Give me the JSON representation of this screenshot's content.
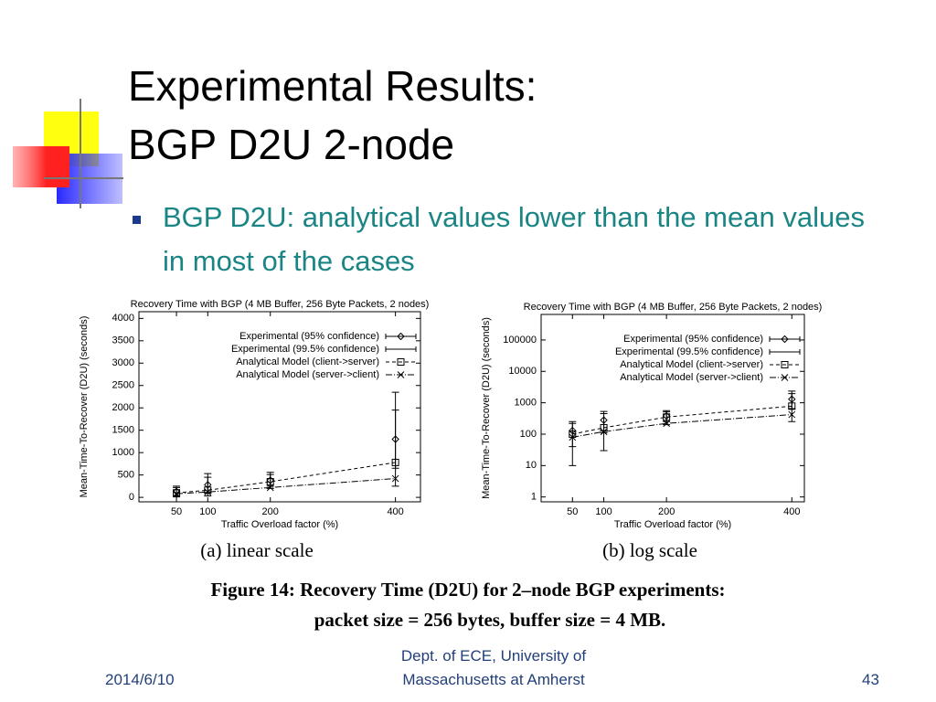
{
  "slide": {
    "title": [
      "Experimental Results:",
      "BGP D2U 2-node"
    ],
    "bullet": "BGP D2U: analytical values lower than the mean values in most of the cases",
    "figure_caption": [
      "Figure 14:  Recovery Time (D2U) for 2–node BGP experiments:",
      "packet size = 256 bytes, buffer size = 4 MB."
    ],
    "footer": {
      "date": "2014/6/10",
      "organization": [
        "Dept. of ECE, University of",
        "Massachusetts at Amherst"
      ],
      "page": "43"
    }
  },
  "chart_data": [
    {
      "type": "line",
      "title": "Recovery Time with BGP (4 MB Buffer, 256 Byte Packets, 2 nodes)",
      "caption": "(a) linear scale",
      "x_label": "Traffic Overload factor (%)",
      "y_label": "Mean-Time-To-Recover (D2U) (seconds)",
      "x": [
        50,
        100,
        200,
        400
      ],
      "xlim": [
        -10,
        440
      ],
      "xticks": [
        50,
        100,
        200,
        400
      ],
      "ylim": [
        -100,
        4150
      ],
      "yticks": [
        0,
        500,
        1000,
        1500,
        2000,
        2500,
        3000,
        3500,
        4000
      ],
      "log_scale": false,
      "legend": "top-right",
      "series": [
        {
          "name": "Experimental (95% confidence)",
          "color": "#000000",
          "mode": "errorbars",
          "marker": "diamond",
          "values": [
            130,
            280,
            380,
            1300
          ],
          "errors": [
            90,
            170,
            130,
            650
          ]
        },
        {
          "name": "Experimental (99.5% confidence)",
          "color": "#000000",
          "mode": "errorbars",
          "marker": "none",
          "values": [
            130,
            280,
            380,
            1300
          ],
          "errors": [
            120,
            250,
            180,
            1050
          ]
        },
        {
          "name": "Analytical Model (client->server)",
          "color": "#000000",
          "mode": "lines",
          "marker": "square",
          "dash": "4 3",
          "values": [
            100,
            160,
            350,
            780
          ]
        },
        {
          "name": "Analytical Model (server->client)",
          "color": "#000000",
          "mode": "lines",
          "marker": "x",
          "dash": "7 2 1 2",
          "values": [
            80,
            120,
            220,
            420
          ]
        }
      ]
    },
    {
      "type": "line",
      "title": "Recovery Time with BGP (4 MB Buffer, 256 Byte Packets, 2 nodes)",
      "caption": "(b) log scale",
      "x_label": "Traffic Overload factor (%)",
      "y_label": "Mean-Time-To-Recover (D2U) (seconds)",
      "x": [
        50,
        100,
        200,
        400
      ],
      "xlim": [
        0,
        420
      ],
      "xticks": [
        50,
        100,
        200,
        400
      ],
      "ylim": [
        0.7,
        650000
      ],
      "yticks": [
        1,
        10,
        100,
        1000,
        10000,
        100000
      ],
      "log_scale": true,
      "legend": "top-right",
      "series": [
        {
          "name": "Experimental (95% confidence)",
          "color": "#000000",
          "mode": "errorbars",
          "marker": "diamond",
          "values": [
            130,
            280,
            380,
            1300
          ],
          "errors": [
            90,
            170,
            130,
            650
          ]
        },
        {
          "name": "Experimental (99.5% confidence)",
          "color": "#000000",
          "mode": "errorbars",
          "marker": "none",
          "values": [
            130,
            280,
            380,
            1300
          ],
          "errors": [
            120,
            250,
            180,
            1050
          ]
        },
        {
          "name": "Analytical Model (client->server)",
          "color": "#000000",
          "mode": "lines",
          "marker": "square",
          "dash": "4 3",
          "values": [
            100,
            160,
            350,
            780
          ]
        },
        {
          "name": "Analytical Model (server->client)",
          "color": "#000000",
          "mode": "lines",
          "marker": "x",
          "dash": "7 2 1 2",
          "values": [
            80,
            120,
            220,
            420
          ]
        }
      ]
    }
  ]
}
